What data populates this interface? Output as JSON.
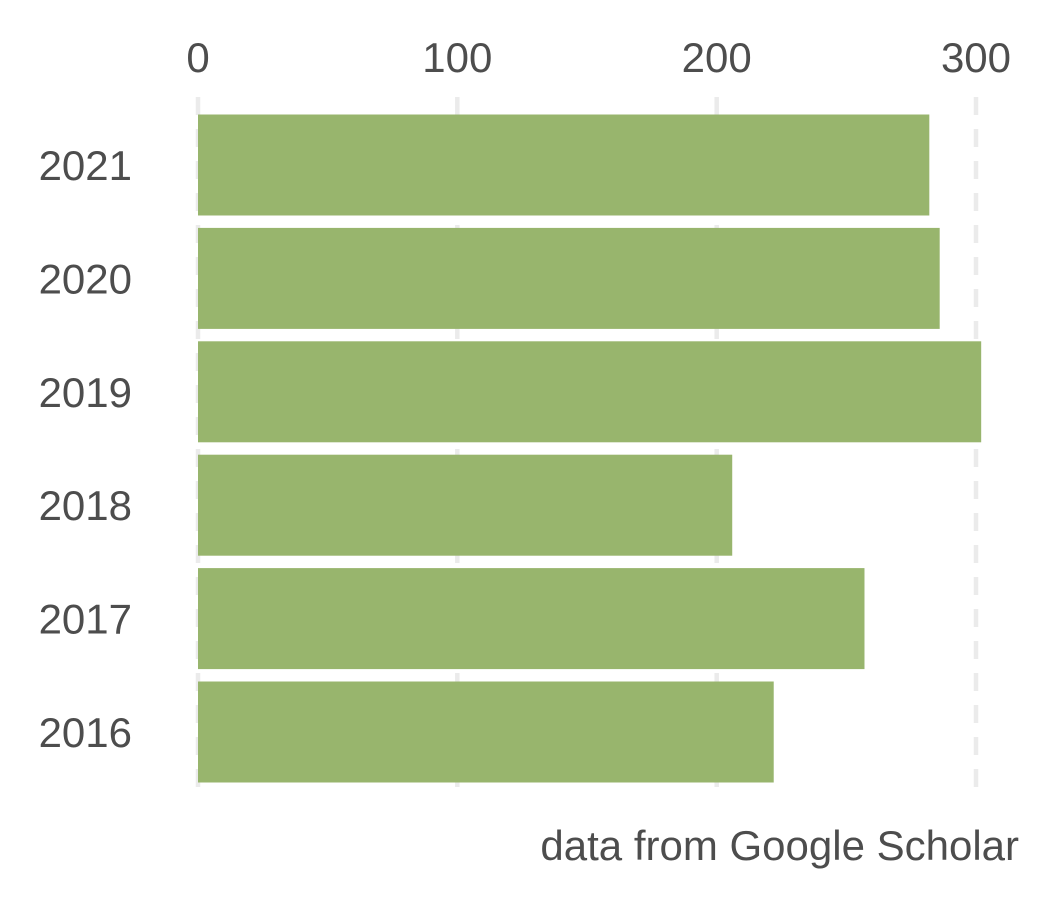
{
  "chart_data": {
    "type": "bar",
    "orientation": "horizontal",
    "categories": [
      "2021",
      "2020",
      "2019",
      "2018",
      "2017",
      "2016"
    ],
    "values": [
      282,
      286,
      302,
      206,
      257,
      222
    ],
    "xlim": [
      0,
      300
    ],
    "x_ticks": [
      0,
      100,
      200,
      300
    ],
    "x_axis_position": "top",
    "grid": true,
    "bar_color": "#98b56d",
    "caption": "data from Google Scholar"
  }
}
